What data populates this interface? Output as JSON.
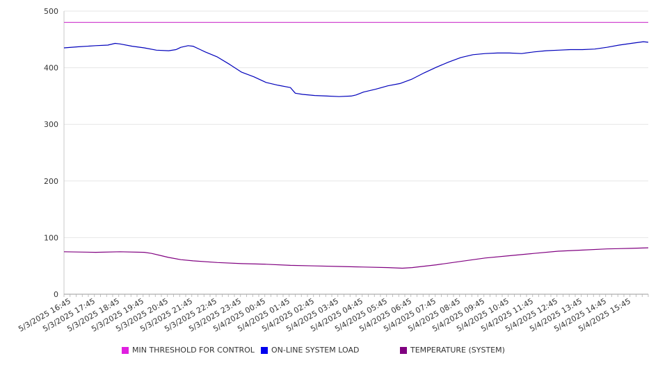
{
  "chart_data": {
    "type": "line",
    "title": "",
    "xlabel": "",
    "ylabel": "",
    "ylim": [
      0,
      500
    ],
    "yticks": [
      0,
      100,
      200,
      300,
      400,
      500
    ],
    "grid": "horizontal",
    "legend_position": "bottom",
    "x_tick_labels": [
      "5/3/2025 16:45",
      "5/3/2025 17:45",
      "5/3/2025 18:45",
      "5/3/2025 19:45",
      "5/3/2025 20:45",
      "5/3/2025 21:45",
      "5/3/2025 22:45",
      "5/3/2025 23:45",
      "5/4/2025 00:45",
      "5/4/2025 01:45",
      "5/4/2025 02:45",
      "5/4/2025 03:45",
      "5/4/2025 04:45",
      "5/4/2025 05:45",
      "5/4/2025 06:45",
      "5/4/2025 07:45",
      "5/4/2025 08:45",
      "5/4/2025 09:45",
      "5/4/2025 10:45",
      "5/4/2025 11:45",
      "5/4/2025 12:45",
      "5/4/2025 13:45",
      "5/4/2025 14:45",
      "5/4/2025 15:45"
    ],
    "x_range_hours": [
      -0.3,
      23.7
    ],
    "series": [
      {
        "name": "MIN THRESHOLD FOR CONTROL",
        "color": "#cc33cc",
        "x": [
          -0.3,
          23.7
        ],
        "y": [
          480,
          480
        ]
      },
      {
        "name": "ON-LINE SYSTEM LOAD",
        "color": "#0000bb",
        "x": [
          -0.3,
          0.3,
          1.0,
          1.5,
          1.8,
          2.0,
          2.5,
          3.0,
          3.5,
          4.0,
          4.3,
          4.5,
          4.8,
          5.0,
          5.3,
          5.5,
          6.0,
          6.5,
          7.0,
          7.5,
          8.0,
          8.5,
          9.0,
          9.2,
          9.5,
          10.0,
          10.5,
          11.0,
          11.5,
          11.7,
          12.0,
          12.5,
          13.0,
          13.5,
          14.0,
          14.5,
          15.0,
          15.5,
          16.0,
          16.5,
          17.0,
          17.5,
          18.0,
          18.5,
          19.0,
          19.5,
          20.0,
          20.5,
          21.0,
          21.5,
          22.0,
          22.5,
          23.0,
          23.5,
          23.7
        ],
        "y": [
          435,
          437,
          439,
          440,
          443,
          442,
          438,
          435,
          431,
          430,
          432,
          436,
          439,
          438,
          432,
          428,
          419,
          406,
          392,
          384,
          374,
          369,
          365,
          355,
          353,
          351,
          350,
          349,
          350,
          352,
          357,
          362,
          368,
          372,
          380,
          391,
          401,
          410,
          418,
          423,
          425,
          426,
          426,
          425,
          428,
          430,
          431,
          432,
          432,
          433,
          436,
          440,
          443,
          446,
          445
        ]
      },
      {
        "name": "TEMPERATURE (SYSTEM)",
        "color": "#800080",
        "x": [
          -0.3,
          1.0,
          2.0,
          3.0,
          3.3,
          3.7,
          4.0,
          4.5,
          5.0,
          6.0,
          7.0,
          8.0,
          9.0,
          10.0,
          11.0,
          12.0,
          13.0,
          13.6,
          14.0,
          15.0,
          16.0,
          17.0,
          18.0,
          19.0,
          20.0,
          21.0,
          22.0,
          23.0,
          23.7
        ],
        "y": [
          75,
          74,
          75,
          74,
          72,
          68,
          65,
          61,
          59,
          56,
          54,
          53,
          51,
          50,
          49,
          48,
          47,
          46,
          47,
          52,
          58,
          64,
          68,
          72,
          76,
          78,
          80,
          81,
          82
        ]
      }
    ]
  }
}
